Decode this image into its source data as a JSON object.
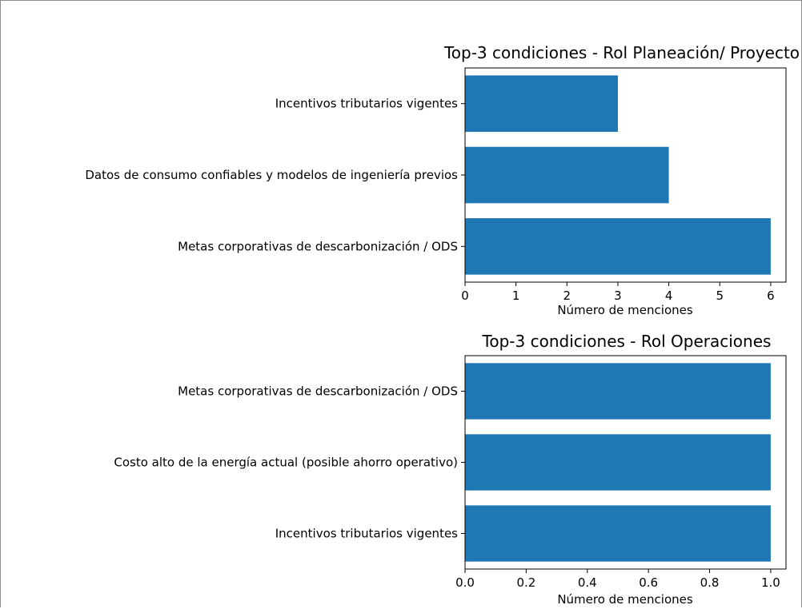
{
  "bar_color": "#1f77b4",
  "chart_data": [
    {
      "type": "bar",
      "orientation": "horizontal",
      "title": "Top-3 condiciones - Rol Planeación/ Proyecto",
      "xlabel": "Número de menciones",
      "ylabel": "",
      "categories": [
        "Incentivos tributarios vigentes",
        "Datos de consumo confiables y modelos de ingeniería previos",
        "Metas corporativas de descarbonización / ODS"
      ],
      "values": [
        3,
        4,
        6
      ],
      "xlim": [
        0,
        6.3
      ],
      "xticks": [
        0,
        1,
        2,
        3,
        4,
        5,
        6
      ],
      "xtick_labels": [
        "0",
        "1",
        "2",
        "3",
        "4",
        "5",
        "6"
      ],
      "grid": false
    },
    {
      "type": "bar",
      "orientation": "horizontal",
      "title": "Top-3 condiciones - Rol Operaciones",
      "xlabel": "Número de menciones",
      "ylabel": "",
      "categories": [
        "Metas corporativas de descarbonización / ODS",
        "Costo alto de la energía actual (posible ahorro operativo)",
        "Incentivos tributarios vigentes"
      ],
      "values": [
        1,
        1,
        1
      ],
      "xlim": [
        0,
        1.05
      ],
      "xticks": [
        0,
        0.2,
        0.4,
        0.6,
        0.8,
        1.0
      ],
      "xtick_labels": [
        "0.0",
        "0.2",
        "0.4",
        "0.6",
        "0.8",
        "1.0"
      ],
      "grid": false
    }
  ]
}
